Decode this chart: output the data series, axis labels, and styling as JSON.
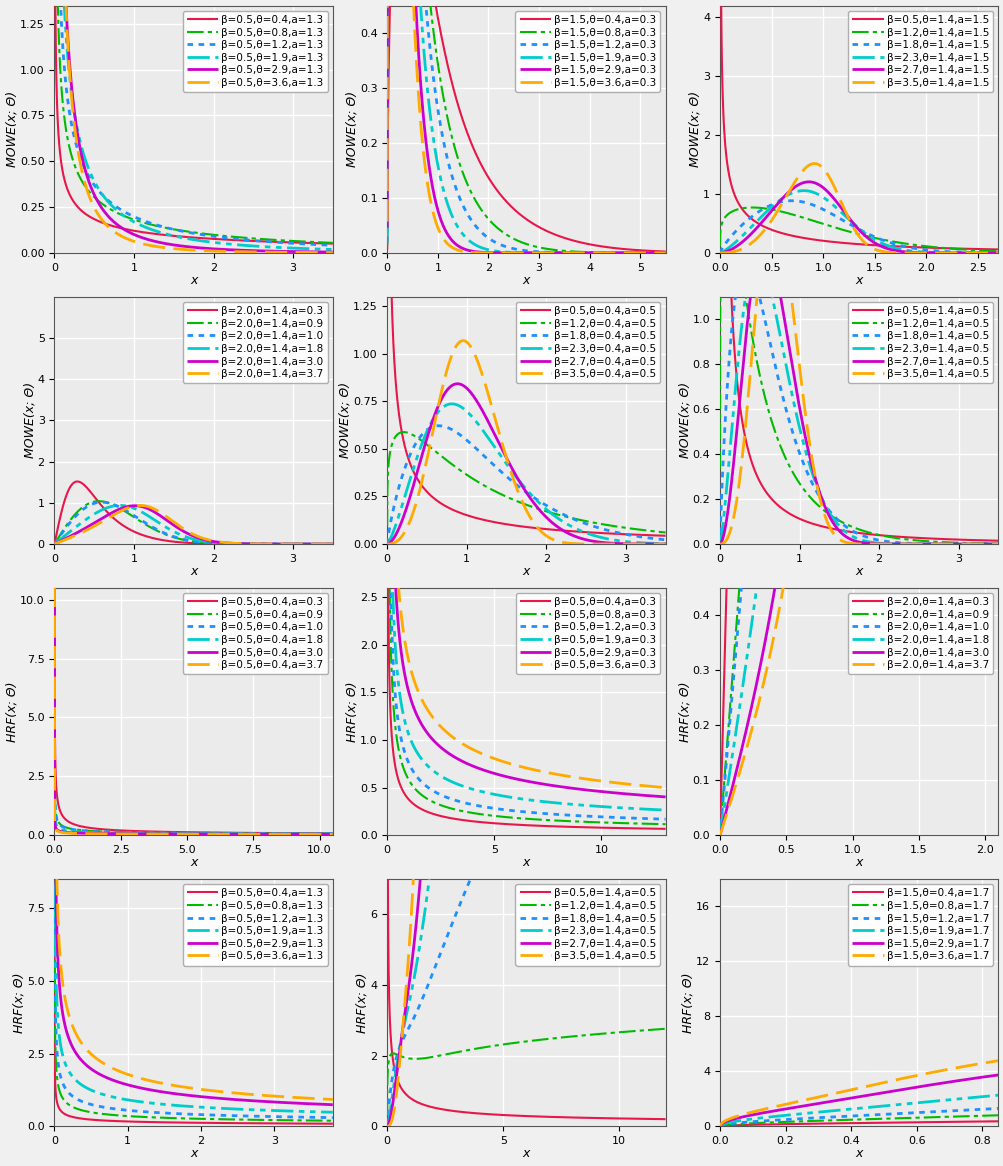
{
  "subplots": [
    {
      "row": 0,
      "col": 0,
      "type": "pdf",
      "ylabel": "MOWE(x; Θ)",
      "xlabel": "x",
      "xlim": [
        0,
        3.5
      ],
      "ylim": [
        0,
        1.35
      ],
      "yticks": [
        0.0,
        0.25,
        0.5,
        0.75,
        1.0,
        1.25
      ],
      "xticks": [
        0,
        1,
        2,
        3
      ],
      "series": [
        {
          "beta": 0.5,
          "theta": 0.4,
          "a": 1.3,
          "color": "#e8174a",
          "ls": "solid",
          "lw": 1.5,
          "label": "β=0.5,θ=0.4,a=1.3"
        },
        {
          "beta": 0.5,
          "theta": 0.8,
          "a": 1.3,
          "color": "#00bb00",
          "ls": "dashdot",
          "lw": 1.5,
          "label": "β=0.5,θ=0.8,a=1.3"
        },
        {
          "beta": 0.5,
          "theta": 1.2,
          "a": 1.3,
          "color": "#1e90ff",
          "ls": "dotted",
          "lw": 2.0,
          "label": "β=0.5,θ=1.2,a=1.3"
        },
        {
          "beta": 0.5,
          "theta": 1.9,
          "a": 1.3,
          "color": "#00cccc",
          "ls": "dashdot",
          "lw": 2.0,
          "label": "β=0.5,θ=1.9,a=1.3"
        },
        {
          "beta": 0.5,
          "theta": 2.9,
          "a": 1.3,
          "color": "#cc00cc",
          "ls": "solid",
          "lw": 2.0,
          "label": "β=0.5,θ=2.9,a=1.3"
        },
        {
          "beta": 0.5,
          "theta": 3.6,
          "a": 1.3,
          "color": "#ffaa00",
          "ls": "dashed",
          "lw": 2.0,
          "label": "β=0.5,θ=3.6,a=1.3"
        }
      ]
    },
    {
      "row": 0,
      "col": 1,
      "type": "pdf",
      "ylabel": "MOWE(x; Θ)",
      "xlabel": "x",
      "xlim": [
        0,
        5.5
      ],
      "ylim": [
        0,
        0.45
      ],
      "yticks": [
        0.0,
        0.1,
        0.2,
        0.3,
        0.4
      ],
      "xticks": [
        0,
        1,
        2,
        3,
        4,
        5
      ],
      "series": [
        {
          "beta": 1.5,
          "theta": 0.4,
          "a": 0.3,
          "color": "#e8174a",
          "ls": "solid",
          "lw": 1.5,
          "label": "β=1.5,θ=0.4,a=0.3"
        },
        {
          "beta": 1.5,
          "theta": 0.8,
          "a": 0.3,
          "color": "#00bb00",
          "ls": "dashdot",
          "lw": 1.5,
          "label": "β=1.5,θ=0.8,a=0.3"
        },
        {
          "beta": 1.5,
          "theta": 1.2,
          "a": 0.3,
          "color": "#1e90ff",
          "ls": "dotted",
          "lw": 2.0,
          "label": "β=1.5,θ=1.2,a=0.3"
        },
        {
          "beta": 1.5,
          "theta": 1.9,
          "a": 0.3,
          "color": "#00cccc",
          "ls": "dashdot",
          "lw": 2.0,
          "label": "β=1.5,θ=1.9,a=0.3"
        },
        {
          "beta": 1.5,
          "theta": 2.9,
          "a": 0.3,
          "color": "#cc00cc",
          "ls": "solid",
          "lw": 2.0,
          "label": "β=1.5,θ=2.9,a=0.3"
        },
        {
          "beta": 1.5,
          "theta": 3.6,
          "a": 0.3,
          "color": "#ffaa00",
          "ls": "dashed",
          "lw": 2.0,
          "label": "β=1.5,θ=3.6,a=0.3"
        }
      ]
    },
    {
      "row": 0,
      "col": 2,
      "type": "pdf",
      "ylabel": "MOWE(x; Θ)",
      "xlabel": "x",
      "xlim": [
        0,
        2.7
      ],
      "ylim": [
        0,
        4.2
      ],
      "yticks": [
        0,
        1,
        2,
        3,
        4
      ],
      "xticks": [
        0.0,
        0.5,
        1.0,
        1.5,
        2.0,
        2.5
      ],
      "series": [
        {
          "beta": 0.5,
          "theta": 1.4,
          "a": 1.5,
          "color": "#e8174a",
          "ls": "solid",
          "lw": 1.5,
          "label": "β=0.5,θ=1.4,a=1.5"
        },
        {
          "beta": 1.2,
          "theta": 1.4,
          "a": 1.5,
          "color": "#00bb00",
          "ls": "dashdot",
          "lw": 1.5,
          "label": "β=1.2,θ=1.4,a=1.5"
        },
        {
          "beta": 1.8,
          "theta": 1.4,
          "a": 1.5,
          "color": "#1e90ff",
          "ls": "dotted",
          "lw": 2.0,
          "label": "β=1.8,θ=1.4,a=1.5"
        },
        {
          "beta": 2.3,
          "theta": 1.4,
          "a": 1.5,
          "color": "#00cccc",
          "ls": "dashdot",
          "lw": 2.0,
          "label": "β=2.3,θ=1.4,a=1.5"
        },
        {
          "beta": 2.7,
          "theta": 1.4,
          "a": 1.5,
          "color": "#cc00cc",
          "ls": "solid",
          "lw": 2.0,
          "label": "β=2.7,θ=1.4,a=1.5"
        },
        {
          "beta": 3.5,
          "theta": 1.4,
          "a": 1.5,
          "color": "#ffaa00",
          "ls": "dashed",
          "lw": 2.0,
          "label": "β=3.5,θ=1.4,a=1.5"
        }
      ]
    },
    {
      "row": 1,
      "col": 0,
      "type": "pdf",
      "ylabel": "MOWE(x; Θ)",
      "xlabel": "x",
      "xlim": [
        0,
        3.5
      ],
      "ylim": [
        0,
        6.0
      ],
      "yticks": [
        0,
        1,
        2,
        3,
        4,
        5
      ],
      "xticks": [
        0,
        1,
        2,
        3
      ],
      "series": [
        {
          "beta": 2.0,
          "theta": 1.4,
          "a": 0.3,
          "color": "#e8174a",
          "ls": "solid",
          "lw": 1.5,
          "label": "β=2.0,θ=1.4,a=0.3"
        },
        {
          "beta": 2.0,
          "theta": 1.4,
          "a": 0.9,
          "color": "#00bb00",
          "ls": "dashdot",
          "lw": 1.5,
          "label": "β=2.0,θ=1.4,a=0.9"
        },
        {
          "beta": 2.0,
          "theta": 1.4,
          "a": 1.0,
          "color": "#1e90ff",
          "ls": "dotted",
          "lw": 2.0,
          "label": "β=2.0,θ=1.4,a=1.0"
        },
        {
          "beta": 2.0,
          "theta": 1.4,
          "a": 1.8,
          "color": "#00cccc",
          "ls": "dashdot",
          "lw": 2.0,
          "label": "β=2.0,θ=1.4,a=1.8"
        },
        {
          "beta": 2.0,
          "theta": 1.4,
          "a": 3.0,
          "color": "#cc00cc",
          "ls": "solid",
          "lw": 2.0,
          "label": "β=2.0,θ=1.4,a=3.0"
        },
        {
          "beta": 2.0,
          "theta": 1.4,
          "a": 3.7,
          "color": "#ffaa00",
          "ls": "dashed",
          "lw": 2.0,
          "label": "β=2.0,θ=1.4,a=3.7"
        }
      ]
    },
    {
      "row": 1,
      "col": 1,
      "type": "pdf",
      "ylabel": "MOWE(x; Θ)",
      "xlabel": "x",
      "xlim": [
        0,
        3.5
      ],
      "ylim": [
        0,
        1.3
      ],
      "yticks": [
        0.0,
        0.25,
        0.5,
        0.75,
        1.0,
        1.25
      ],
      "xticks": [
        0,
        1,
        2,
        3
      ],
      "series": [
        {
          "beta": 0.5,
          "theta": 0.4,
          "a": 0.5,
          "color": "#e8174a",
          "ls": "solid",
          "lw": 1.5,
          "label": "β=0.5,θ=0.4,a=0.5"
        },
        {
          "beta": 1.2,
          "theta": 0.4,
          "a": 0.5,
          "color": "#00bb00",
          "ls": "dashdot",
          "lw": 1.5,
          "label": "β=1.2,θ=0.4,a=0.5"
        },
        {
          "beta": 1.8,
          "theta": 0.4,
          "a": 0.5,
          "color": "#1e90ff",
          "ls": "dotted",
          "lw": 2.0,
          "label": "β=1.8,θ=0.4,a=0.5"
        },
        {
          "beta": 2.3,
          "theta": 0.4,
          "a": 0.5,
          "color": "#00cccc",
          "ls": "dashdot",
          "lw": 2.0,
          "label": "β=2.3,θ=0.4,a=0.5"
        },
        {
          "beta": 2.7,
          "theta": 0.4,
          "a": 0.5,
          "color": "#cc00cc",
          "ls": "solid",
          "lw": 2.0,
          "label": "β=2.7,θ=0.4,a=0.5"
        },
        {
          "beta": 3.5,
          "theta": 0.4,
          "a": 0.5,
          "color": "#ffaa00",
          "ls": "dashed",
          "lw": 2.0,
          "label": "β=3.5,θ=0.4,a=0.5"
        }
      ]
    },
    {
      "row": 1,
      "col": 2,
      "type": "pdf",
      "ylabel": "MOWE(x; Θ)",
      "xlabel": "x",
      "xlim": [
        0,
        3.5
      ],
      "ylim": [
        0,
        1.1
      ],
      "yticks": [
        0.0,
        0.2,
        0.4,
        0.6,
        0.8,
        1.0
      ],
      "xticks": [
        0,
        1,
        2,
        3
      ],
      "series": [
        {
          "beta": 0.5,
          "theta": 1.4,
          "a": 0.5,
          "color": "#e8174a",
          "ls": "solid",
          "lw": 1.5,
          "label": "β=0.5,θ=1.4,a=0.5"
        },
        {
          "beta": 1.2,
          "theta": 1.4,
          "a": 0.5,
          "color": "#00bb00",
          "ls": "dashdot",
          "lw": 1.5,
          "label": "β=1.2,θ=1.4,a=0.5"
        },
        {
          "beta": 1.8,
          "theta": 1.4,
          "a": 0.5,
          "color": "#1e90ff",
          "ls": "dotted",
          "lw": 2.0,
          "label": "β=1.8,θ=1.4,a=0.5"
        },
        {
          "beta": 2.3,
          "theta": 1.4,
          "a": 0.5,
          "color": "#00cccc",
          "ls": "dashdot",
          "lw": 2.0,
          "label": "β=2.3,θ=1.4,a=0.5"
        },
        {
          "beta": 2.7,
          "theta": 1.4,
          "a": 0.5,
          "color": "#cc00cc",
          "ls": "solid",
          "lw": 2.0,
          "label": "β=2.7,θ=1.4,a=0.5"
        },
        {
          "beta": 3.5,
          "theta": 1.4,
          "a": 0.5,
          "color": "#ffaa00",
          "ls": "dashed",
          "lw": 2.0,
          "label": "β=3.5,θ=1.4,a=0.5"
        }
      ]
    },
    {
      "row": 2,
      "col": 0,
      "type": "hrf",
      "ylabel": "HRF(x; Θ)",
      "xlabel": "x",
      "xlim": [
        0,
        10.5
      ],
      "ylim": [
        0,
        10.5
      ],
      "yticks": [
        0,
        2.5,
        5.0,
        7.5,
        10.0
      ],
      "xticks": [
        0.0,
        2.5,
        5.0,
        7.5,
        10.0
      ],
      "series": [
        {
          "beta": 0.5,
          "theta": 0.4,
          "a": 0.3,
          "color": "#e8174a",
          "ls": "solid",
          "lw": 1.5,
          "label": "β=0.5,θ=0.4,a=0.3"
        },
        {
          "beta": 0.5,
          "theta": 0.4,
          "a": 0.9,
          "color": "#00bb00",
          "ls": "dashdot",
          "lw": 1.5,
          "label": "β=0.5,θ=0.4,a=0.9"
        },
        {
          "beta": 0.5,
          "theta": 0.4,
          "a": 1.0,
          "color": "#1e90ff",
          "ls": "dotted",
          "lw": 2.0,
          "label": "β=0.5,θ=0.4,a=1.0"
        },
        {
          "beta": 0.5,
          "theta": 0.4,
          "a": 1.8,
          "color": "#00cccc",
          "ls": "dashdot",
          "lw": 2.0,
          "label": "β=0.5,θ=0.4,a=1.8"
        },
        {
          "beta": 0.5,
          "theta": 0.4,
          "a": 3.0,
          "color": "#cc00cc",
          "ls": "solid",
          "lw": 2.0,
          "label": "β=0.5,θ=0.4,a=3.0"
        },
        {
          "beta": 0.5,
          "theta": 0.4,
          "a": 3.7,
          "color": "#ffaa00",
          "ls": "dashed",
          "lw": 2.0,
          "label": "β=0.5,θ=0.4,a=3.7"
        }
      ]
    },
    {
      "row": 2,
      "col": 1,
      "type": "hrf",
      "ylabel": "HRF(x; Θ)",
      "xlabel": "x",
      "xlim": [
        0,
        13
      ],
      "ylim": [
        0,
        2.6
      ],
      "yticks": [
        0.0,
        0.5,
        1.0,
        1.5,
        2.0,
        2.5
      ],
      "xticks": [
        0,
        5,
        10
      ],
      "series": [
        {
          "beta": 0.5,
          "theta": 0.4,
          "a": 0.3,
          "color": "#e8174a",
          "ls": "solid",
          "lw": 1.5,
          "label": "β=0.5,θ=0.4,a=0.3"
        },
        {
          "beta": 0.5,
          "theta": 0.8,
          "a": 0.3,
          "color": "#00bb00",
          "ls": "dashdot",
          "lw": 1.5,
          "label": "β=0.5,θ=0.8,a=0.3"
        },
        {
          "beta": 0.5,
          "theta": 1.2,
          "a": 0.3,
          "color": "#1e90ff",
          "ls": "dotted",
          "lw": 2.0,
          "label": "β=0.5,θ=1.2,a=0.3"
        },
        {
          "beta": 0.5,
          "theta": 1.9,
          "a": 0.3,
          "color": "#00cccc",
          "ls": "dashdot",
          "lw": 2.0,
          "label": "β=0.5,θ=1.9,a=0.3"
        },
        {
          "beta": 0.5,
          "theta": 2.9,
          "a": 0.3,
          "color": "#cc00cc",
          "ls": "solid",
          "lw": 2.0,
          "label": "β=0.5,θ=2.9,a=0.3"
        },
        {
          "beta": 0.5,
          "theta": 3.6,
          "a": 0.3,
          "color": "#ffaa00",
          "ls": "dashed",
          "lw": 2.0,
          "label": "β=0.5,θ=3.6,a=0.3"
        }
      ]
    },
    {
      "row": 2,
      "col": 2,
      "type": "hrf",
      "ylabel": "HRF(x; Θ)",
      "xlabel": "x",
      "xlim": [
        0,
        2.1
      ],
      "ylim": [
        0,
        0.45
      ],
      "yticks": [
        0.0,
        0.1,
        0.2,
        0.3,
        0.4
      ],
      "xticks": [
        0.0,
        0.5,
        1.0,
        1.5,
        2.0
      ],
      "series": [
        {
          "beta": 2.0,
          "theta": 1.4,
          "a": 0.3,
          "color": "#e8174a",
          "ls": "solid",
          "lw": 1.5,
          "label": "β=2.0,θ=1.4,a=0.3"
        },
        {
          "beta": 2.0,
          "theta": 1.4,
          "a": 0.9,
          "color": "#00bb00",
          "ls": "dashdot",
          "lw": 1.5,
          "label": "β=2.0,θ=1.4,a=0.9"
        },
        {
          "beta": 2.0,
          "theta": 1.4,
          "a": 1.0,
          "color": "#1e90ff",
          "ls": "dotted",
          "lw": 2.0,
          "label": "β=2.0,θ=1.4,a=1.0"
        },
        {
          "beta": 2.0,
          "theta": 1.4,
          "a": 1.8,
          "color": "#00cccc",
          "ls": "dashdot",
          "lw": 2.0,
          "label": "β=2.0,θ=1.4,a=1.8"
        },
        {
          "beta": 2.0,
          "theta": 1.4,
          "a": 3.0,
          "color": "#cc00cc",
          "ls": "solid",
          "lw": 2.0,
          "label": "β=2.0,θ=1.4,a=3.0"
        },
        {
          "beta": 2.0,
          "theta": 1.4,
          "a": 3.7,
          "color": "#ffaa00",
          "ls": "dashed",
          "lw": 2.0,
          "label": "β=2.0,θ=1.4,a=3.7"
        }
      ]
    },
    {
      "row": 3,
      "col": 0,
      "type": "hrf",
      "ylabel": "HRF(x; Θ)",
      "xlabel": "x",
      "xlim": [
        0,
        3.8
      ],
      "ylim": [
        0,
        8.5
      ],
      "yticks": [
        0,
        2.5,
        5.0,
        7.5
      ],
      "xticks": [
        0,
        1,
        2,
        3
      ],
      "series": [
        {
          "beta": 0.5,
          "theta": 0.4,
          "a": 1.3,
          "color": "#e8174a",
          "ls": "solid",
          "lw": 1.5,
          "label": "β=0.5,θ=0.4,a=1.3"
        },
        {
          "beta": 0.5,
          "theta": 0.8,
          "a": 1.3,
          "color": "#00bb00",
          "ls": "dashdot",
          "lw": 1.5,
          "label": "β=0.5,θ=0.8,a=1.3"
        },
        {
          "beta": 0.5,
          "theta": 1.2,
          "a": 1.3,
          "color": "#1e90ff",
          "ls": "dotted",
          "lw": 2.0,
          "label": "β=0.5,θ=1.2,a=1.3"
        },
        {
          "beta": 0.5,
          "theta": 1.9,
          "a": 1.3,
          "color": "#00cccc",
          "ls": "dashdot",
          "lw": 2.0,
          "label": "β=0.5,θ=1.9,a=1.3"
        },
        {
          "beta": 0.5,
          "theta": 2.9,
          "a": 1.3,
          "color": "#cc00cc",
          "ls": "solid",
          "lw": 2.0,
          "label": "β=0.5,θ=2.9,a=1.3"
        },
        {
          "beta": 0.5,
          "theta": 3.6,
          "a": 1.3,
          "color": "#ffaa00",
          "ls": "dashed",
          "lw": 2.0,
          "label": "β=0.5,θ=3.6,a=1.3"
        }
      ]
    },
    {
      "row": 3,
      "col": 1,
      "type": "hrf",
      "ylabel": "HRF(x; Θ)",
      "xlabel": "x",
      "xlim": [
        0,
        12
      ],
      "ylim": [
        0,
        7
      ],
      "yticks": [
        0,
        2,
        4,
        6
      ],
      "xticks": [
        0,
        5,
        10
      ],
      "series": [
        {
          "beta": 0.5,
          "theta": 1.4,
          "a": 0.5,
          "color": "#e8174a",
          "ls": "solid",
          "lw": 1.5,
          "label": "β=0.5,θ=1.4,a=0.5"
        },
        {
          "beta": 1.2,
          "theta": 1.4,
          "a": 0.5,
          "color": "#00bb00",
          "ls": "dashdot",
          "lw": 1.5,
          "label": "β=1.2,θ=1.4,a=0.5"
        },
        {
          "beta": 1.8,
          "theta": 1.4,
          "a": 0.5,
          "color": "#1e90ff",
          "ls": "dotted",
          "lw": 2.0,
          "label": "β=1.8,θ=1.4,a=0.5"
        },
        {
          "beta": 2.3,
          "theta": 1.4,
          "a": 0.5,
          "color": "#00cccc",
          "ls": "dashdot",
          "lw": 2.0,
          "label": "β=2.3,θ=1.4,a=0.5"
        },
        {
          "beta": 2.7,
          "theta": 1.4,
          "a": 0.5,
          "color": "#cc00cc",
          "ls": "solid",
          "lw": 2.0,
          "label": "β=2.7,θ=1.4,a=0.5"
        },
        {
          "beta": 3.5,
          "theta": 1.4,
          "a": 0.5,
          "color": "#ffaa00",
          "ls": "dashed",
          "lw": 2.0,
          "label": "β=3.5,θ=1.4,a=0.5"
        }
      ]
    },
    {
      "row": 3,
      "col": 2,
      "type": "hrf",
      "ylabel": "HRF(x; Θ)",
      "xlabel": "x",
      "xlim": [
        0,
        0.85
      ],
      "ylim": [
        0,
        18
      ],
      "yticks": [
        0,
        4,
        8,
        12,
        16
      ],
      "xticks": [
        0.0,
        0.2,
        0.4,
        0.6,
        0.8
      ],
      "series": [
        {
          "beta": 1.5,
          "theta": 0.4,
          "a": 1.7,
          "color": "#e8174a",
          "ls": "solid",
          "lw": 1.5,
          "label": "β=1.5,θ=0.4,a=1.7"
        },
        {
          "beta": 1.5,
          "theta": 0.8,
          "a": 1.7,
          "color": "#00bb00",
          "ls": "dashdot",
          "lw": 1.5,
          "label": "β=1.5,θ=0.8,a=1.7"
        },
        {
          "beta": 1.5,
          "theta": 1.2,
          "a": 1.7,
          "color": "#1e90ff",
          "ls": "dotted",
          "lw": 2.0,
          "label": "β=1.5,θ=1.2,a=1.7"
        },
        {
          "beta": 1.5,
          "theta": 1.9,
          "a": 1.7,
          "color": "#00cccc",
          "ls": "dashdot",
          "lw": 2.0,
          "label": "β=1.5,θ=1.9,a=1.7"
        },
        {
          "beta": 1.5,
          "theta": 2.9,
          "a": 1.7,
          "color": "#cc00cc",
          "ls": "solid",
          "lw": 2.0,
          "label": "β=1.5,θ=2.9,a=1.7"
        },
        {
          "beta": 1.5,
          "theta": 3.6,
          "a": 1.7,
          "color": "#ffaa00",
          "ls": "dashed",
          "lw": 2.0,
          "label": "β=1.5,θ=3.6,a=1.7"
        }
      ]
    }
  ],
  "bg_color": "#ebebeb",
  "grid_color": "white",
  "font_size_label": 9,
  "font_size_tick": 8,
  "font_size_legend": 7.5
}
